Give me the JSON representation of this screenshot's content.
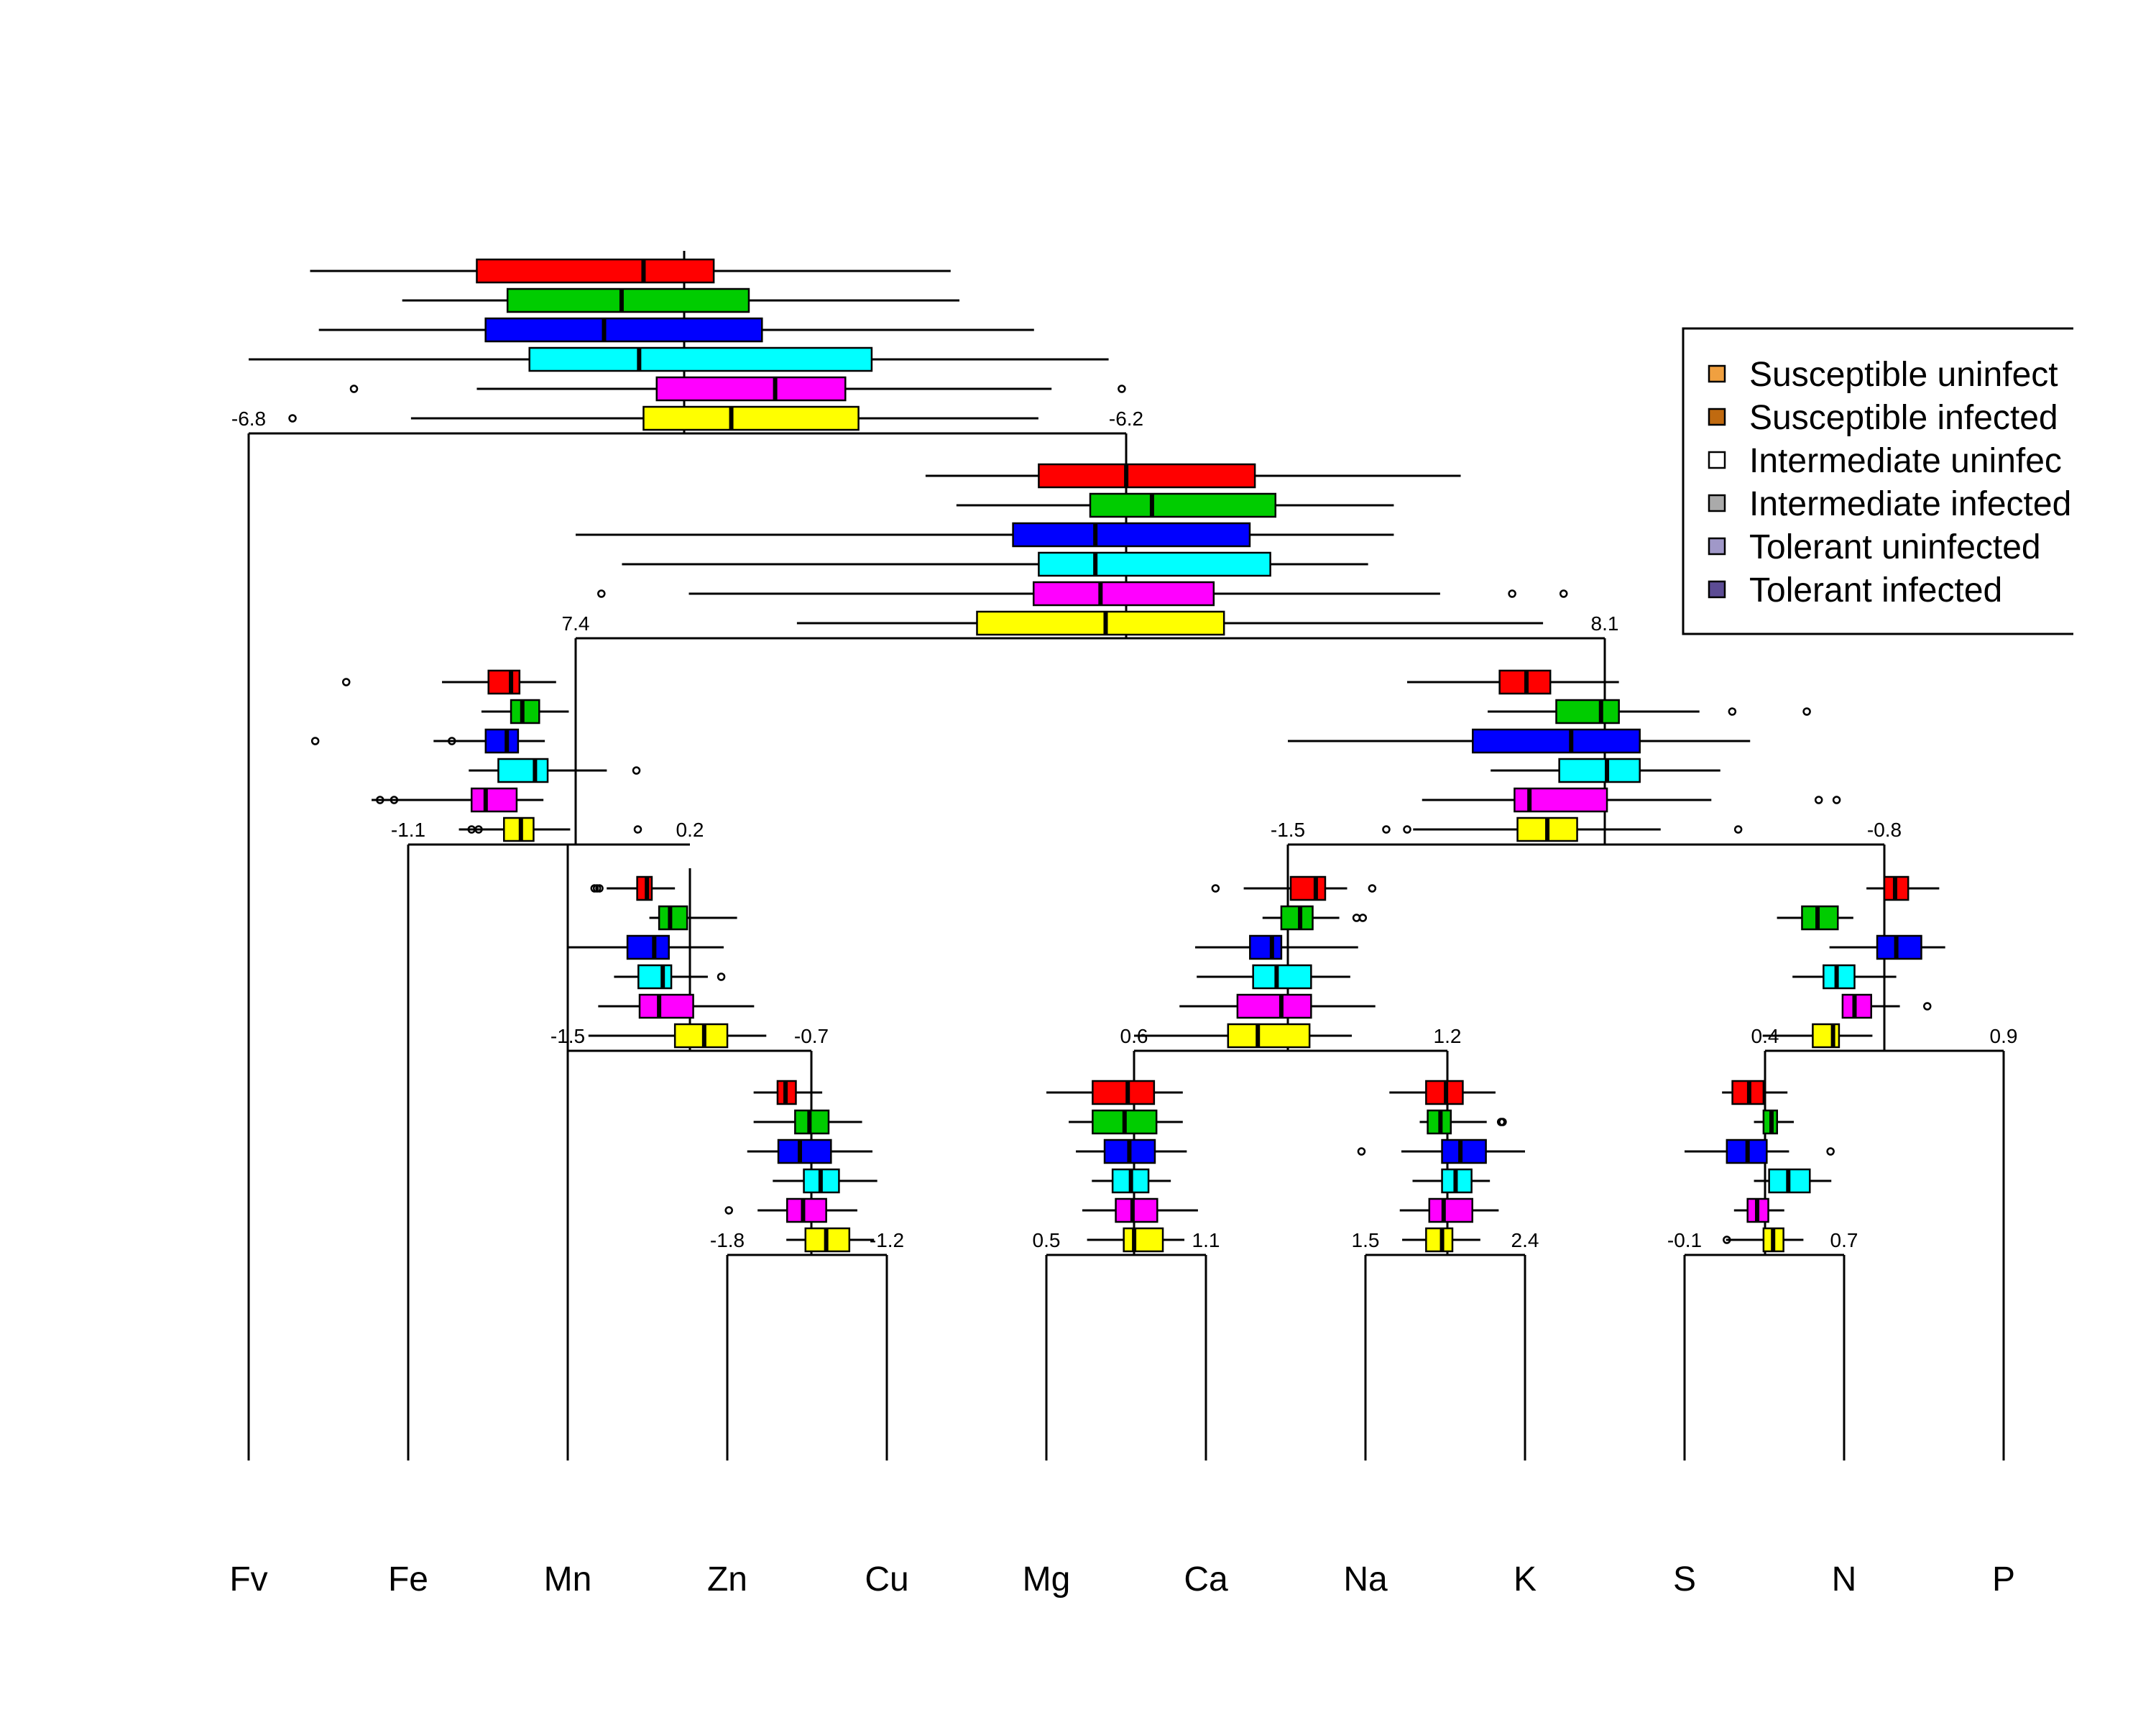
{
  "chart_data": {
    "type": "dendrogram-boxplot",
    "title": "",
    "leaves": [
      "Fv",
      "Fe",
      "Mn",
      "Zn",
      "Cu",
      "Mg",
      "Ca",
      "Na",
      "K",
      "S",
      "N",
      "P"
    ],
    "legend": {
      "entries": [
        {
          "label": "Susceptible uninfect",
          "color": "#f0a040"
        },
        {
          "label": "Susceptible infected",
          "color": "#c06a10"
        },
        {
          "label": "Intermediate uninfec",
          "color": "#ffffff"
        },
        {
          "label": "Intermediate infected",
          "color": "#aaaaaa"
        },
        {
          "label": "Tolerant uninfected",
          "color": "#a098c8"
        },
        {
          "label": "Tolerant infected",
          "color": "#5c4c94"
        }
      ]
    },
    "series_colors": [
      "#ff0000",
      "#00cc00",
      "#0000ff",
      "#00ffff",
      "#ff00ff",
      "#ffff00"
    ],
    "nodes": [
      {
        "id": "root",
        "scale": [
          "-6.8",
          "-6.2"
        ],
        "boxes": [
          {
            "wmin": 0.14,
            "q1": 0.52,
            "med": 0.9,
            "q3": 1.06,
            "wmax": 1.6,
            "out": []
          },
          {
            "wmin": 0.35,
            "q1": 0.59,
            "med": 0.85,
            "q3": 1.14,
            "wmax": 1.62,
            "out": []
          },
          {
            "wmin": 0.16,
            "q1": 0.54,
            "med": 0.81,
            "q3": 1.17,
            "wmax": 1.79,
            "out": []
          },
          {
            "wmin": 0.0,
            "q1": 0.64,
            "med": 0.89,
            "q3": 1.42,
            "wmax": 1.96,
            "out": []
          },
          {
            "wmin": 0.52,
            "q1": 0.93,
            "med": 1.2,
            "q3": 1.36,
            "wmax": 1.83,
            "out": [
              0.24,
              1.99
            ]
          },
          {
            "wmin": 0.37,
            "q1": 0.9,
            "med": 1.1,
            "q3": 1.39,
            "wmax": 1.8,
            "out": [
              0.1
            ]
          }
        ]
      },
      {
        "id": "n2",
        "scale": [
          "7.4",
          "8.1"
        ],
        "boxes": [
          {
            "wmin": 0.68,
            "q1": 0.9,
            "med": 1.07,
            "q3": 1.32,
            "wmax": 1.72,
            "out": []
          },
          {
            "wmin": 0.74,
            "q1": 1.0,
            "med": 1.12,
            "q3": 1.36,
            "wmax": 1.59,
            "out": []
          },
          {
            "wmin": 0.0,
            "q1": 0.85,
            "med": 1.01,
            "q3": 1.31,
            "wmax": 1.59,
            "out": []
          },
          {
            "wmin": 0.09,
            "q1": 0.9,
            "med": 1.01,
            "q3": 1.35,
            "wmax": 1.54,
            "out": []
          },
          {
            "wmin": 0.22,
            "q1": 0.89,
            "med": 1.02,
            "q3": 1.24,
            "wmax": 1.68,
            "out": [
              0.05,
              1.82,
              1.92
            ]
          },
          {
            "wmin": 0.43,
            "q1": 0.78,
            "med": 1.03,
            "q3": 1.26,
            "wmax": 1.88,
            "out": []
          }
        ]
      },
      {
        "id": "n3",
        "scale": [
          "-1.1",
          "0.2"
        ],
        "boxes": [
          {
            "wmin": 0.24,
            "q1": 0.57,
            "med": 0.73,
            "q3": 0.79,
            "wmax": 1.05,
            "out": [
              -0.44
            ]
          },
          {
            "wmin": 0.52,
            "q1": 0.73,
            "med": 0.81,
            "q3": 0.93,
            "wmax": 1.14,
            "out": []
          },
          {
            "wmin": 0.18,
            "q1": 0.55,
            "med": 0.7,
            "q3": 0.78,
            "wmax": 0.97,
            "out": [
              -0.66,
              0.31
            ]
          },
          {
            "wmin": 0.43,
            "q1": 0.64,
            "med": 0.9,
            "q3": 0.99,
            "wmax": 1.41,
            "out": [
              1.62
            ]
          },
          {
            "wmin": -0.26,
            "q1": 0.45,
            "med": 0.55,
            "q3": 0.77,
            "wmax": 0.96,
            "out": [
              -0.1,
              -0.2
            ]
          },
          {
            "wmin": 0.36,
            "q1": 0.68,
            "med": 0.8,
            "q3": 0.89,
            "wmax": 1.15,
            "out": [
              0.45,
              0.5,
              1.63
            ]
          }
        ]
      },
      {
        "id": "n4",
        "scale": [
          "-1.5",
          "-0.8"
        ],
        "boxes": [
          {
            "wmin": 0.4,
            "q1": 0.71,
            "med": 0.8,
            "q3": 0.88,
            "wmax": 1.11,
            "out": []
          },
          {
            "wmin": 0.67,
            "q1": 0.9,
            "med": 1.05,
            "q3": 1.11,
            "wmax": 1.38,
            "out": [
              1.49,
              1.74
            ]
          },
          {
            "wmin": 0.0,
            "q1": 0.62,
            "med": 0.95,
            "q3": 1.18,
            "wmax": 1.55,
            "out": []
          },
          {
            "wmin": 0.68,
            "q1": 0.91,
            "med": 1.07,
            "q3": 1.18,
            "wmax": 1.45,
            "out": []
          },
          {
            "wmin": 0.45,
            "q1": 0.76,
            "med": 0.81,
            "q3": 1.07,
            "wmax": 1.42,
            "out": [
              1.78,
              1.84
            ]
          },
          {
            "wmin": 0.42,
            "q1": 0.77,
            "med": 0.87,
            "q3": 0.97,
            "wmax": 1.25,
            "out": [
              0.33,
              0.4,
              1.51
            ]
          }
        ]
      },
      {
        "id": "n5",
        "scale": [
          "-1.5",
          "-0.7"
        ],
        "boxes": [
          {
            "wmin": 0.32,
            "q1": 0.57,
            "med": 0.65,
            "q3": 0.69,
            "wmax": 0.88,
            "out": [
              0.22,
              0.24,
              0.26
            ]
          },
          {
            "wmin": 0.67,
            "q1": 0.75,
            "med": 0.84,
            "q3": 0.98,
            "wmax": 1.39,
            "out": []
          },
          {
            "wmin": 0.0,
            "q1": 0.49,
            "med": 0.71,
            "q3": 0.83,
            "wmax": 1.28,
            "out": []
          },
          {
            "wmin": 0.38,
            "q1": 0.58,
            "med": 0.78,
            "q3": 0.85,
            "wmax": 1.15,
            "out": [
              1.26
            ]
          },
          {
            "wmin": 0.25,
            "q1": 0.59,
            "med": 0.75,
            "q3": 1.03,
            "wmax": 1.53,
            "out": []
          },
          {
            "wmin": 0.17,
            "q1": 0.88,
            "med": 1.12,
            "q3": 1.31,
            "wmax": 1.63,
            "out": []
          }
        ]
      },
      {
        "id": "n6",
        "scale": [
          "0.6",
          "1.2"
        ],
        "boxes": [
          {
            "wmin": 0.7,
            "q1": 1.0,
            "med": 1.16,
            "q3": 1.22,
            "wmax": 1.36,
            "out": [
              0.52,
              1.52
            ]
          },
          {
            "wmin": 0.82,
            "q1": 0.94,
            "med": 1.06,
            "q3": 1.14,
            "wmax": 1.31,
            "out": [
              1.42,
              1.46
            ]
          },
          {
            "wmin": 0.39,
            "q1": 0.74,
            "med": 0.88,
            "q3": 0.94,
            "wmax": 1.43,
            "out": []
          },
          {
            "wmin": 0.4,
            "q1": 0.76,
            "med": 0.91,
            "q3": 1.13,
            "wmax": 1.38,
            "out": []
          },
          {
            "wmin": 0.29,
            "q1": 0.66,
            "med": 0.94,
            "q3": 1.13,
            "wmax": 1.54,
            "out": []
          },
          {
            "wmin": 0.0,
            "q1": 0.6,
            "med": 0.79,
            "q3": 1.12,
            "wmax": 1.39,
            "out": []
          }
        ]
      },
      {
        "id": "n7",
        "scale": [
          "0.4",
          "0.9"
        ],
        "boxes": [
          {
            "wmin": 0.85,
            "q1": 1.0,
            "med": 1.09,
            "q3": 1.2,
            "wmax": 1.46,
            "out": []
          },
          {
            "wmin": 0.1,
            "q1": 0.31,
            "med": 0.44,
            "q3": 0.61,
            "wmax": 0.74,
            "out": []
          },
          {
            "wmin": 0.54,
            "q1": 0.94,
            "med": 1.1,
            "q3": 1.31,
            "wmax": 1.51,
            "out": []
          },
          {
            "wmin": 0.23,
            "q1": 0.49,
            "med": 0.6,
            "q3": 0.75,
            "wmax": 1.1,
            "out": []
          },
          {
            "wmin": 0.66,
            "q1": 0.65,
            "med": 0.75,
            "q3": 0.89,
            "wmax": 1.13,
            "out": [
              1.36
            ]
          },
          {
            "wmin": -0.02,
            "q1": 0.4,
            "med": 0.57,
            "q3": 0.62,
            "wmax": 0.9,
            "out": []
          }
        ]
      },
      {
        "id": "n8",
        "scale": [
          "-1.8",
          "-1.2"
        ],
        "boxes": [
          {
            "wmin": 0.33,
            "q1": 0.63,
            "med": 0.73,
            "q3": 0.86,
            "wmax": 1.19,
            "out": []
          },
          {
            "wmin": 0.33,
            "q1": 0.85,
            "med": 1.03,
            "q3": 1.27,
            "wmax": 1.69,
            "out": []
          },
          {
            "wmin": 0.25,
            "q1": 0.64,
            "med": 0.91,
            "q3": 1.3,
            "wmax": 1.82,
            "out": []
          },
          {
            "wmin": 0.57,
            "q1": 0.96,
            "med": 1.17,
            "q3": 1.4,
            "wmax": 1.88,
            "out": []
          },
          {
            "wmin": 0.38,
            "q1": 0.75,
            "med": 0.95,
            "q3": 1.24,
            "wmax": 1.63,
            "out": [
              0.02
            ]
          },
          {
            "wmin": 0.74,
            "q1": 0.98,
            "med": 1.24,
            "q3": 1.53,
            "wmax": 1.84,
            "out": []
          }
        ]
      },
      {
        "id": "n9",
        "scale": [
          "0.5",
          "1.1"
        ],
        "boxes": [
          {
            "wmin": 0.0,
            "q1": 0.58,
            "med": 1.02,
            "q3": 1.35,
            "wmax": 1.71,
            "out": []
          },
          {
            "wmin": 0.28,
            "q1": 0.58,
            "med": 0.98,
            "q3": 1.38,
            "wmax": 1.71,
            "out": []
          },
          {
            "wmin": 0.37,
            "q1": 0.73,
            "med": 1.04,
            "q3": 1.36,
            "wmax": 1.76,
            "out": []
          },
          {
            "wmin": 0.57,
            "q1": 0.83,
            "med": 1.06,
            "q3": 1.28,
            "wmax": 1.56,
            "out": []
          },
          {
            "wmin": 0.45,
            "q1": 0.87,
            "med": 1.08,
            "q3": 1.39,
            "wmax": 1.9,
            "out": []
          },
          {
            "wmin": 0.51,
            "q1": 0.97,
            "med": 1.1,
            "q3": 1.46,
            "wmax": 1.73,
            "out": []
          }
        ]
      },
      {
        "id": "n10",
        "scale": [
          "1.5",
          "2.4"
        ],
        "boxes": [
          {
            "wmin": 0.3,
            "q1": 0.76,
            "med": 1.01,
            "q3": 1.22,
            "wmax": 1.63,
            "out": []
          },
          {
            "wmin": 0.68,
            "q1": 0.78,
            "med": 0.94,
            "q3": 1.07,
            "wmax": 1.52,
            "out": [
              1.7,
              1.72
            ]
          },
          {
            "wmin": 0.45,
            "q1": 0.96,
            "med": 1.19,
            "q3": 1.51,
            "wmax": 2.0,
            "out": [
              -0.05
            ]
          },
          {
            "wmin": 0.59,
            "q1": 0.96,
            "med": 1.13,
            "q3": 1.33,
            "wmax": 1.56,
            "out": []
          },
          {
            "wmin": 0.43,
            "q1": 0.8,
            "med": 0.98,
            "q3": 1.34,
            "wmax": 1.67,
            "out": []
          },
          {
            "wmin": 0.46,
            "q1": 0.76,
            "med": 0.96,
            "q3": 1.09,
            "wmax": 1.44,
            "out": []
          }
        ]
      },
      {
        "id": "n11",
        "scale": [
          "-0.1",
          "0.7"
        ],
        "boxes": [
          {
            "wmin": 0.47,
            "q1": 0.6,
            "med": 0.81,
            "q3": 0.99,
            "wmax": 1.29,
            "out": []
          },
          {
            "wmin": 0.87,
            "q1": 0.99,
            "med": 1.09,
            "q3": 1.16,
            "wmax": 1.37,
            "out": []
          },
          {
            "wmin": 0.0,
            "q1": 0.53,
            "med": 0.79,
            "q3": 1.03,
            "wmax": 1.31,
            "out": [
              1.83
            ]
          },
          {
            "wmin": 0.87,
            "q1": 1.06,
            "med": 1.3,
            "q3": 1.57,
            "wmax": 1.84,
            "out": []
          },
          {
            "wmin": 0.62,
            "q1": 0.79,
            "med": 0.91,
            "q3": 1.05,
            "wmax": 1.25,
            "out": []
          },
          {
            "wmin": 0.52,
            "q1": 0.99,
            "med": 1.11,
            "q3": 1.24,
            "wmax": 1.49,
            "out": [
              0.53
            ]
          }
        ]
      }
    ]
  }
}
